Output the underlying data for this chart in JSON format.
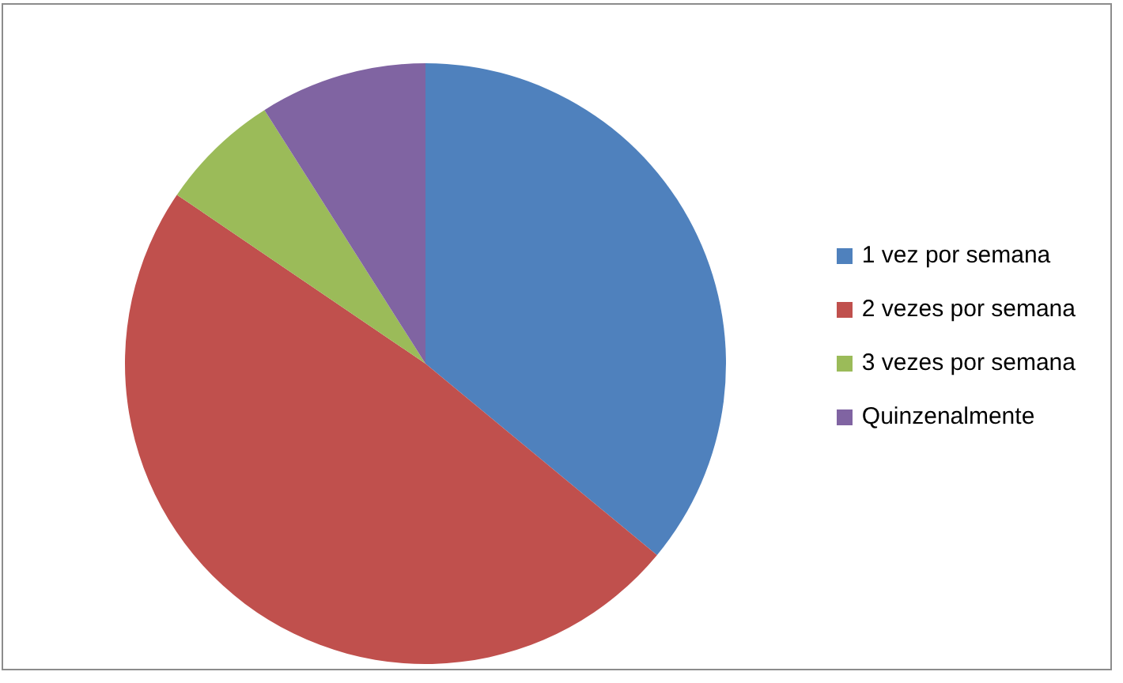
{
  "chart_data": {
    "type": "pie",
    "categories": [
      "1 vez por semana",
      "2 vezes por semana",
      "3 vezes por semana",
      "Quinzenalmente"
    ],
    "values": [
      36,
      48.5,
      6.5,
      9
    ],
    "colors": [
      "#4f81bd",
      "#c0504d",
      "#9bbb59",
      "#8064a2"
    ],
    "legend": "right"
  }
}
